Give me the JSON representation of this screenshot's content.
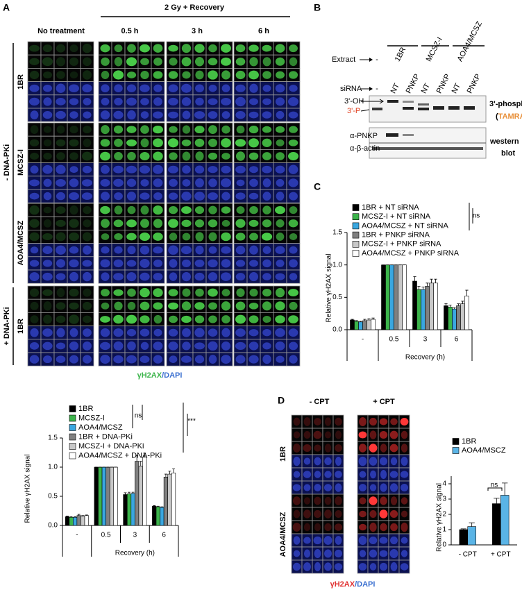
{
  "panel_a": {
    "letter": "A",
    "treatment_header": "2 Gy + Recovery",
    "columns": [
      "No treatment",
      "0.5 h",
      "3 h",
      "6 h"
    ],
    "condition_minus": "- DNA-PKi",
    "condition_plus": "+ DNA-PKi",
    "rows": [
      "1BR",
      "MCSZ-I",
      "AOA4/MCSZ",
      "1BR"
    ],
    "stain": {
      "marker": "γH2AX",
      "separator": "/",
      "counterstain": "DAPI"
    }
  },
  "panel_b": {
    "letter": "B",
    "extract_label": "Extract",
    "extract_lanes": [
      "-",
      "1BR",
      "MCSZ-I",
      "AOA4/MCSZ"
    ],
    "sirna_label": "siRNA",
    "sirna_lanes": [
      "-",
      "NT",
      "PNKP",
      "NT",
      "PNKP",
      "NT",
      "PNKP"
    ],
    "band_oh": "3'-OH",
    "band_p": "3'-P",
    "assay": "3'-phosph.",
    "dye_open": "(",
    "dye": "TAMRA",
    "dye_close": ")",
    "blot_rows": [
      "α-PNKP",
      "α-β-actin"
    ],
    "blot_label": [
      "western",
      "blot"
    ]
  },
  "panel_c": {
    "letter": "C"
  },
  "panel_d": {
    "letter": "D",
    "columns": [
      "- CPT",
      "+ CPT"
    ],
    "rows": [
      "1BR",
      "AOA4/MCSZ"
    ],
    "stain": {
      "marker": "γH2AX",
      "separator": "/",
      "counterstain": "DAPI"
    }
  },
  "chart_data": [
    {
      "type": "bar",
      "ylabel": "Relative γH2AX signal",
      "xlabel": "Recovery (h)",
      "categories": [
        "-",
        "0.5",
        "3",
        "6"
      ],
      "series": [
        {
          "name": "1BR + NT siRNA",
          "color": "#000000",
          "values": [
            0.15,
            1.0,
            0.75,
            0.37
          ],
          "errors": [
            0.01,
            0,
            0.07,
            0.03
          ]
        },
        {
          "name": "MCSZ-I + NT siRNA",
          "color": "#3cb44b",
          "values": [
            0.13,
            1.0,
            0.62,
            0.35
          ],
          "errors": [
            0.01,
            0,
            0.05,
            0.03
          ]
        },
        {
          "name": "AOA4/MCSZ + NT siRNA",
          "color": "#3aa7e0",
          "values": [
            0.12,
            1.0,
            0.62,
            0.32
          ],
          "errors": [
            0.01,
            0,
            0.04,
            0.02
          ]
        },
        {
          "name": "1BR  + PNKP siRNA",
          "color": "#808080",
          "values": [
            0.14,
            1.0,
            0.67,
            0.37
          ],
          "errors": [
            0.02,
            0,
            0.05,
            0.03
          ]
        },
        {
          "name": "MCSZ-I + PNKP siRNA",
          "color": "#c8c8c8",
          "values": [
            0.15,
            1.0,
            0.72,
            0.4
          ],
          "errors": [
            0.02,
            0,
            0.06,
            0.04
          ]
        },
        {
          "name": "AOA4/MCSZ + PNKP siRNA",
          "color": "#ffffff",
          "values": [
            0.16,
            1.0,
            0.72,
            0.52
          ],
          "errors": [
            0.02,
            0,
            0.06,
            0.09
          ]
        }
      ],
      "ylim": [
        0,
        1.5
      ],
      "yticks": [
        {
          "value": 0,
          "label": "0.0"
        },
        {
          "value": 0.5,
          "label": "0.5"
        },
        {
          "value": 1,
          "label": "1.0"
        },
        {
          "value": 1.5,
          "label": "1.5"
        }
      ],
      "annotations": [
        "ns"
      ]
    },
    {
      "type": "bar",
      "ylabel": "Relative γH2AX signal",
      "xlabel": "Recovery (h)",
      "categories": [
        "-",
        "0.5",
        "3",
        "6"
      ],
      "series": [
        {
          "name": "1BR",
          "color": "#000000",
          "values": [
            0.15,
            1.0,
            0.53,
            0.33
          ],
          "errors": [
            0.01,
            0,
            0.03,
            0.01
          ]
        },
        {
          "name": "MCSZ-I",
          "color": "#3cb44b",
          "values": [
            0.14,
            1.0,
            0.54,
            0.32
          ],
          "errors": [
            0.01,
            0,
            0.03,
            0.01
          ]
        },
        {
          "name": "AOA4/MCSZ",
          "color": "#3aa7e0",
          "values": [
            0.14,
            1.0,
            0.55,
            0.31
          ],
          "errors": [
            0.01,
            0,
            0.02,
            0.01
          ]
        },
        {
          "name": "1BR + DNA-PKi",
          "color": "#808080",
          "values": [
            0.17,
            1.0,
            1.1,
            0.83
          ],
          "errors": [
            0.02,
            0,
            0.1,
            0.05
          ]
        },
        {
          "name": "MCSZ-I + DNA-PKi",
          "color": "#c8c8c8",
          "values": [
            0.16,
            1.0,
            1.02,
            0.88
          ],
          "errors": [
            0.01,
            0,
            0.08,
            0.05
          ]
        },
        {
          "name": "AOA4/MCSZ + DNA-PKi",
          "color": "#ffffff",
          "values": [
            0.17,
            1.0,
            1.17,
            0.9
          ],
          "errors": [
            0.01,
            0,
            0.07,
            0.07
          ]
        }
      ],
      "ylim": [
        0,
        1.5
      ],
      "yticks": [
        {
          "value": 0,
          "label": "0.0"
        },
        {
          "value": 0.5,
          "label": "0.5"
        },
        {
          "value": 1,
          "label": "1.0"
        },
        {
          "value": 1.5,
          "label": "1.5"
        }
      ],
      "annotations": [
        "ns",
        "***"
      ]
    },
    {
      "type": "bar",
      "ylabel": "Relative γH2AX signal",
      "categories": [
        "- CPT",
        "+ CPT"
      ],
      "series": [
        {
          "name": "1BR",
          "color": "#000000",
          "values": [
            1.0,
            2.7
          ],
          "errors": [
            0.05,
            0.35
          ]
        },
        {
          "name": "AOA4/MSCZ",
          "color": "#5ab4e6",
          "values": [
            1.2,
            3.25
          ],
          "errors": [
            0.25,
            0.8
          ]
        }
      ],
      "ylim": [
        0,
        4.5
      ],
      "yticks": [
        0,
        1,
        2,
        3,
        4
      ],
      "annotations": [
        "ns"
      ]
    }
  ]
}
